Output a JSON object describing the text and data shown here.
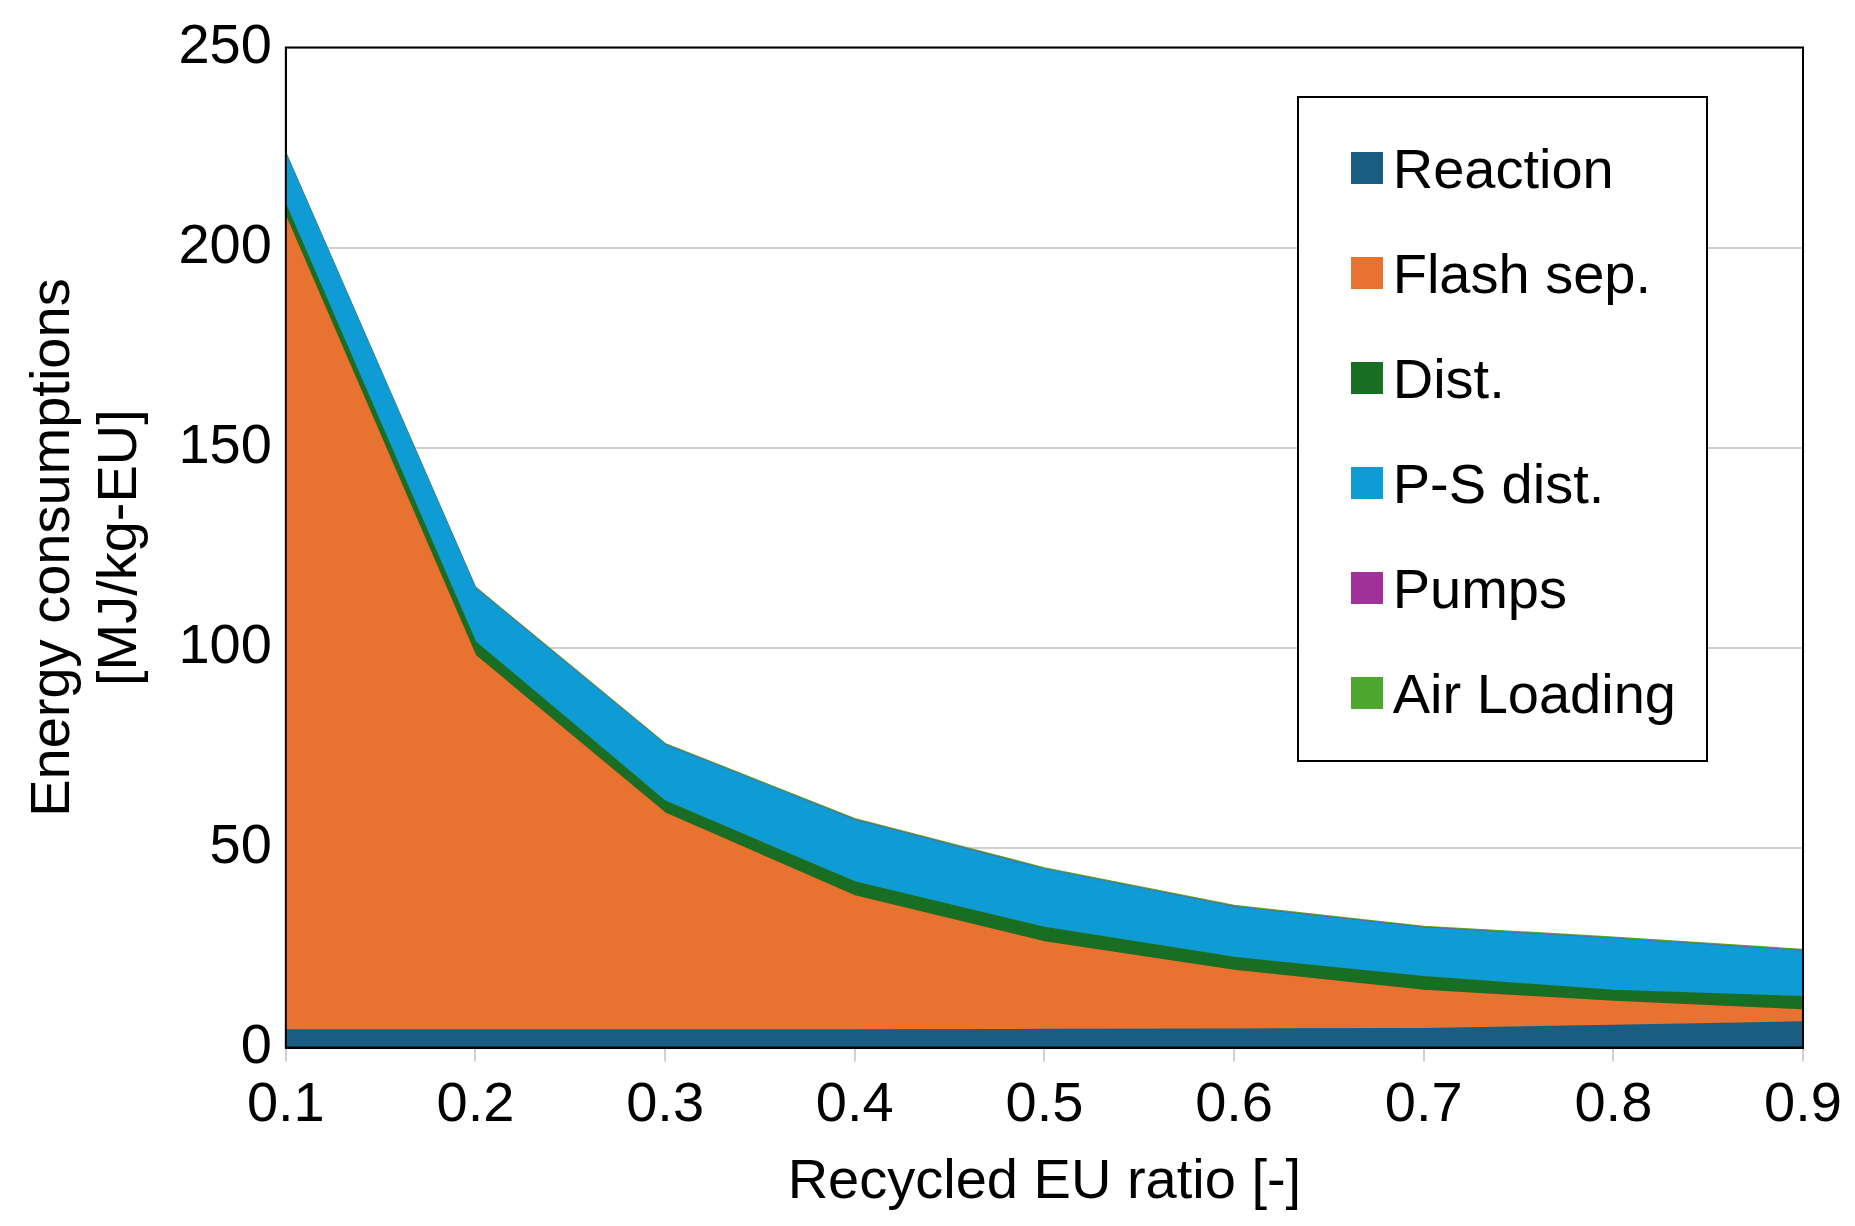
{
  "chart_data": {
    "type": "area",
    "stacked": true,
    "xlabel": "Recycled EU ratio [-]",
    "ylabel": "Energy consumptions\n[MJ/kg-EU]",
    "x": [
      0.1,
      0.2,
      0.3,
      0.4,
      0.5,
      0.6,
      0.7,
      0.8,
      0.9
    ],
    "xlim": [
      0.1,
      0.9
    ],
    "xticks": [
      0.1,
      0.2,
      0.3,
      0.4,
      0.5,
      0.6,
      0.7,
      0.8,
      0.9
    ],
    "ylim": [
      0,
      250
    ],
    "yticks": [
      0,
      50,
      100,
      150,
      200,
      250
    ],
    "grid": "y",
    "legend": "top right",
    "series": [
      {
        "name": "Reaction",
        "color": "#1a5d80",
        "values": [
          4.4,
          4.4,
          4.4,
          4.4,
          4.5,
          4.6,
          4.7,
          5.5,
          6.4
        ]
      },
      {
        "name": "Flash sep.",
        "color": "#e8722f",
        "values": [
          203.3,
          93.6,
          54.2,
          33.5,
          21.9,
          14.7,
          9.6,
          6.0,
          3.0
        ]
      },
      {
        "name": "Dist.",
        "color": "#1a6e24",
        "values": [
          3,
          3.4,
          3,
          3.5,
          3.6,
          3.2,
          3.4,
          2.8,
          3.3
        ]
      },
      {
        "name": "P-S dist.",
        "color": "#0f9bd4",
        "values": [
          12.6,
          13.3,
          14,
          15.4,
          14.5,
          12.6,
          12.2,
          12.9,
          11.4
        ]
      },
      {
        "name": "Pumps",
        "color": "#a0309a",
        "values": [
          0.1,
          0.1,
          0.1,
          0.1,
          0.1,
          0.1,
          0.1,
          0.1,
          0.1
        ]
      },
      {
        "name": "Air Loading",
        "color": "#4ea72e",
        "values": [
          0.3,
          0.3,
          0.3,
          0.3,
          0.3,
          0.3,
          0.3,
          0.3,
          0.3
        ]
      }
    ]
  }
}
